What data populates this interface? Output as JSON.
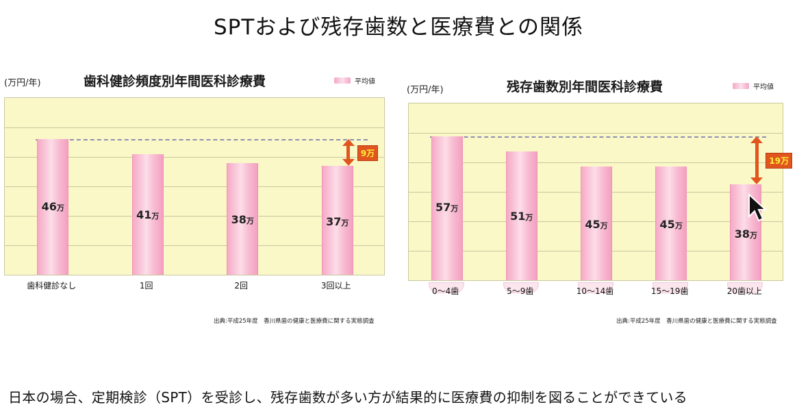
{
  "slide": {
    "title": "SPTおよび残存歯数と医療費との関係",
    "caption": "日本の場合、定期検診（SPT）を受診し、残存歯数が多い方が結果的に医療費の抑制を図ることができている"
  },
  "chart_data": [
    {
      "type": "bar",
      "title": "歯科健診頻度別年間医科診療費",
      "ylabel": "(万円/年)",
      "legend": "平均値",
      "legend_position": "top-right",
      "categories": [
        "歯科健診なし",
        "1回",
        "2回",
        "3回以上"
      ],
      "values": [
        46,
        41,
        38,
        37
      ],
      "value_suffix": "万",
      "ylim": [
        0,
        60
      ],
      "grid": true,
      "difference": {
        "label": "9万",
        "value": 9,
        "from_category": "3回以上"
      },
      "source": "出典:平成25年度　香川県歯の健康と医療費に関する実態調査"
    },
    {
      "type": "bar",
      "title": "残存歯数別年間医科診療費",
      "ylabel": "(万円/年)",
      "legend": "平均値",
      "legend_position": "top-right",
      "categories": [
        "0〜4歯",
        "5〜9歯",
        "10〜14歯",
        "15〜19歯",
        "20歯以上"
      ],
      "values": [
        57,
        51,
        45,
        45,
        38
      ],
      "value_suffix": "万",
      "ylim": [
        0,
        70
      ],
      "grid": true,
      "difference": {
        "label": "19万",
        "value": 19,
        "from_category": "20歯以上"
      },
      "source": "出典:平成25年度　香川県歯の健康と医療費に関する実態調査"
    }
  ],
  "colors": {
    "plot_bg": "#fbf8c8",
    "bar": "#f6a9c6",
    "diff_arrow": "#e0561e",
    "diff_text": "#ffef3a"
  },
  "icons": {
    "cursor": "mouse-pointer-icon",
    "teeth": "teeth-icon"
  }
}
